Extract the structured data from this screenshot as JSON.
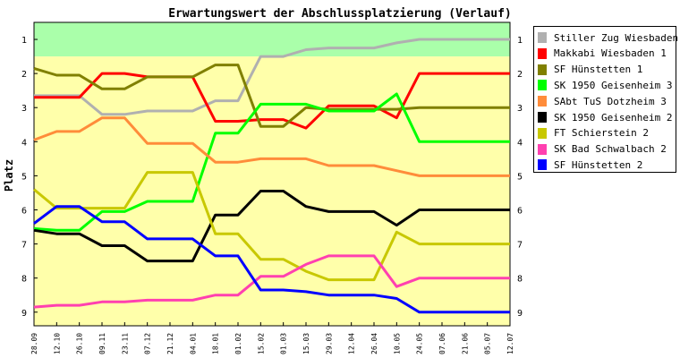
{
  "chart_data": {
    "type": "line",
    "title": "Erwartungswert der Abschlussplatzierung (Verlauf)",
    "ylabel": "Platz",
    "xlabel": "",
    "ylim": [
      0.5,
      9.4
    ],
    "y_inverted": true,
    "yticks": [
      1,
      2,
      3,
      4,
      5,
      6,
      7,
      8,
      9
    ],
    "grid": false,
    "legend_placement": "right",
    "bands": [
      {
        "from": 0.5,
        "to": 1.5,
        "color": "#aaffaa"
      },
      {
        "from": 1.5,
        "to": 9.4,
        "color": "#ffffaa"
      }
    ],
    "categories": [
      "28.09",
      "12.10",
      "26.10",
      "09.11",
      "23.11",
      "07.12",
      "21.12",
      "04.01",
      "18.01",
      "01.02",
      "15.02",
      "01.03",
      "15.03",
      "29.03",
      "12.04",
      "26.04",
      "10.05",
      "24.05",
      "07.06",
      "21.06",
      "05.07",
      "12.07"
    ],
    "series": [
      {
        "name": "Stiller Zug Wiesbaden 2",
        "color": "#b0b0b0",
        "values": [
          2.65,
          2.65,
          2.65,
          3.2,
          3.2,
          3.1,
          3.1,
          3.1,
          2.8,
          2.8,
          1.5,
          1.5,
          1.3,
          1.25,
          1.25,
          1.25,
          1.1,
          1.0,
          1.0,
          1.0,
          1.0,
          1.0
        ]
      },
      {
        "name": "Makkabi Wiesbaden 1",
        "color": "#ff0000",
        "values": [
          2.7,
          2.7,
          2.7,
          2.0,
          2.0,
          2.1,
          2.1,
          2.1,
          3.4,
          3.4,
          3.35,
          3.35,
          3.6,
          2.95,
          2.95,
          2.95,
          3.3,
          2.0,
          2.0,
          2.0,
          2.0,
          2.0
        ]
      },
      {
        "name": "SF Hünstetten 1",
        "color": "#808000",
        "values": [
          1.85,
          2.05,
          2.05,
          2.45,
          2.45,
          2.1,
          2.1,
          2.1,
          1.75,
          1.75,
          3.55,
          3.55,
          3.0,
          3.05,
          3.05,
          3.05,
          3.05,
          3.0,
          3.0,
          3.0,
          3.0,
          3.0
        ]
      },
      {
        "name": "SK 1950 Geisenheim 3",
        "color": "#00ff00",
        "values": [
          6.55,
          6.6,
          6.6,
          6.05,
          6.05,
          5.75,
          5.75,
          5.75,
          3.75,
          3.75,
          2.9,
          2.9,
          2.9,
          3.1,
          3.1,
          3.1,
          2.6,
          4.0,
          4.0,
          4.0,
          4.0,
          4.0
        ]
      },
      {
        "name": "SAbt TuS Dotzheim 3",
        "color": "#ff8c3a",
        "values": [
          3.95,
          3.7,
          3.7,
          3.3,
          3.3,
          4.05,
          4.05,
          4.05,
          4.6,
          4.6,
          4.5,
          4.5,
          4.5,
          4.7,
          4.7,
          4.7,
          4.85,
          5.0,
          5.0,
          5.0,
          5.0,
          5.0
        ]
      },
      {
        "name": "SK 1950 Geisenheim 2",
        "color": "#000000",
        "values": [
          6.6,
          6.7,
          6.7,
          7.05,
          7.05,
          7.5,
          7.5,
          7.5,
          6.15,
          6.15,
          5.45,
          5.45,
          5.9,
          6.05,
          6.05,
          6.05,
          6.45,
          6.0,
          6.0,
          6.0,
          6.0,
          6.0
        ]
      },
      {
        "name": "FT Schierstein 2",
        "color": "#c8c800",
        "values": [
          5.4,
          5.95,
          5.95,
          5.95,
          5.95,
          4.9,
          4.9,
          4.9,
          6.7,
          6.7,
          7.45,
          7.45,
          7.8,
          8.05,
          8.05,
          8.05,
          6.65,
          7.0,
          7.0,
          7.0,
          7.0,
          7.0
        ]
      },
      {
        "name": "SK Bad Schwalbach 2",
        "color": "#ff40b0",
        "values": [
          8.85,
          8.8,
          8.8,
          8.7,
          8.7,
          8.65,
          8.65,
          8.65,
          8.5,
          8.5,
          7.95,
          7.95,
          7.6,
          7.35,
          7.35,
          7.35,
          8.25,
          8.0,
          8.0,
          8.0,
          8.0,
          8.0
        ]
      },
      {
        "name": "SF Hünstetten 2",
        "color": "#0000ff",
        "values": [
          6.4,
          5.9,
          5.9,
          6.35,
          6.35,
          6.85,
          6.85,
          6.85,
          7.35,
          7.35,
          8.35,
          8.35,
          8.4,
          8.5,
          8.5,
          8.5,
          8.6,
          9.0,
          9.0,
          9.0,
          9.0,
          9.0
        ]
      }
    ]
  }
}
